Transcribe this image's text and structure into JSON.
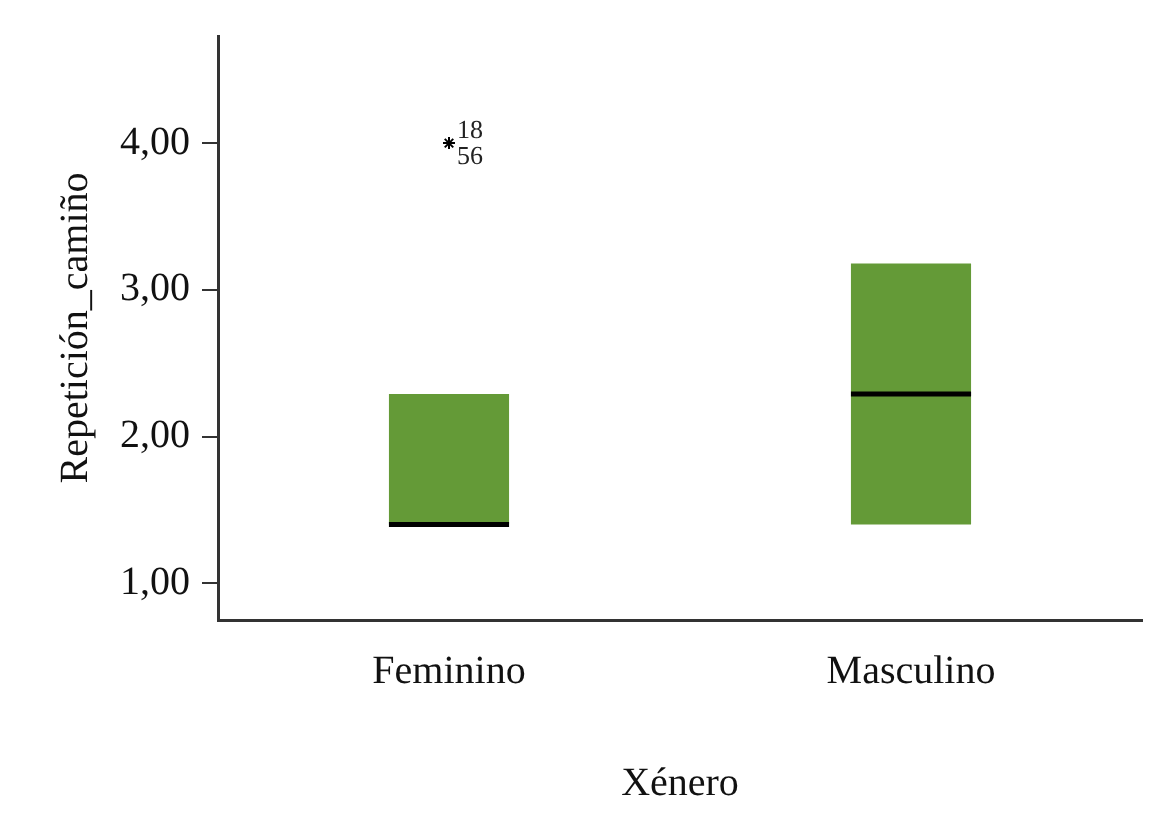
{
  "chart_data": {
    "type": "box",
    "xlabel": "Xénero",
    "ylabel": "Repetición_camiño",
    "categories": [
      "Feminino",
      "Masculino"
    ],
    "boxes": [
      {
        "low": 1.4,
        "q1": 1.4,
        "median": 1.4,
        "q3": 2.29,
        "high": 2.29,
        "outliers": [
          4.0
        ]
      },
      {
        "low": 1.4,
        "q1": 1.4,
        "median": 2.29,
        "q3": 3.18,
        "high": 3.18
      }
    ],
    "color": "#649a37",
    "marker": "star",
    "ylim": [
      0.75,
      4.73
    ],
    "yticks": [
      {
        "value": 1,
        "label": "1,00"
      },
      {
        "value": 2,
        "label": "2,00"
      },
      {
        "value": 3,
        "label": "3,00"
      },
      {
        "value": 4,
        "label": "4,00"
      }
    ],
    "annotations": [
      "18",
      "56"
    ],
    "grid": false,
    "legend": false
  }
}
